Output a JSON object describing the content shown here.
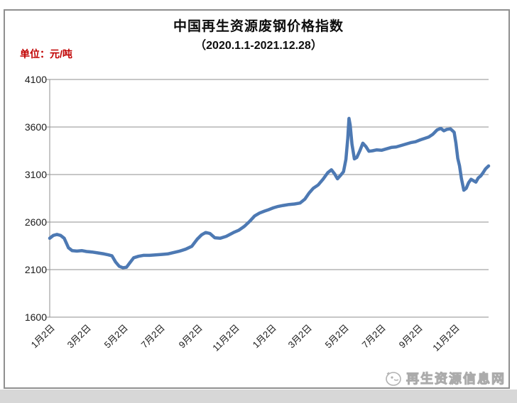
{
  "header": {
    "title": "中国再生资源废钢价格指数",
    "subtitle": "（2020.1.1-2021.12.28）",
    "unit_label": "单位：元/吨"
  },
  "watermark": {
    "text": "再生资源信息网"
  },
  "colors": {
    "line": "#4d79b3",
    "grid": "#8f8f8f",
    "axis": "#8f8f8f",
    "unit_label": "#c00000",
    "title": "#0d0d0d"
  },
  "chart_data": {
    "type": "line",
    "title": "中国再生资源废钢价格指数（2020.1.1-2021.12.28）",
    "ylabel": "元/吨",
    "ylim": [
      1600,
      4100
    ],
    "y_ticks": [
      4100,
      3600,
      3100,
      2600,
      2100,
      1600
    ],
    "x_ticks": [
      {
        "date": "2020-01-02",
        "label": "1月2日"
      },
      {
        "date": "2020-03-02",
        "label": "3月2日"
      },
      {
        "date": "2020-05-02",
        "label": "5月2日"
      },
      {
        "date": "2020-07-02",
        "label": "7月2日"
      },
      {
        "date": "2020-09-02",
        "label": "9月2日"
      },
      {
        "date": "2020-11-02",
        "label": "11月2日"
      },
      {
        "date": "2021-01-02",
        "label": "1月2日"
      },
      {
        "date": "2021-03-02",
        "label": "3月2日"
      },
      {
        "date": "2021-05-02",
        "label": "5月2日"
      },
      {
        "date": "2021-07-02",
        "label": "7月2日"
      },
      {
        "date": "2021-09-02",
        "label": "9月2日"
      },
      {
        "date": "2021-11-02",
        "label": "11月2日"
      }
    ],
    "grid": true,
    "legend": false,
    "series": [
      {
        "name": "废钢价格指数",
        "points": [
          {
            "date": "2020-01-02",
            "value": 2430
          },
          {
            "date": "2020-01-08",
            "value": 2460
          },
          {
            "date": "2020-01-14",
            "value": 2470
          },
          {
            "date": "2020-01-20",
            "value": 2460
          },
          {
            "date": "2020-01-26",
            "value": 2430
          },
          {
            "date": "2020-02-02",
            "value": 2330
          },
          {
            "date": "2020-02-08",
            "value": 2300
          },
          {
            "date": "2020-02-16",
            "value": 2295
          },
          {
            "date": "2020-02-24",
            "value": 2300
          },
          {
            "date": "2020-03-03",
            "value": 2290
          },
          {
            "date": "2020-03-12",
            "value": 2285
          },
          {
            "date": "2020-03-22",
            "value": 2275
          },
          {
            "date": "2020-04-01",
            "value": 2265
          },
          {
            "date": "2020-04-08",
            "value": 2255
          },
          {
            "date": "2020-04-14",
            "value": 2245
          },
          {
            "date": "2020-04-20",
            "value": 2180
          },
          {
            "date": "2020-04-26",
            "value": 2135
          },
          {
            "date": "2020-05-02",
            "value": 2120
          },
          {
            "date": "2020-05-08",
            "value": 2125
          },
          {
            "date": "2020-05-14",
            "value": 2175
          },
          {
            "date": "2020-05-20",
            "value": 2225
          },
          {
            "date": "2020-05-28",
            "value": 2240
          },
          {
            "date": "2020-06-05",
            "value": 2250
          },
          {
            "date": "2020-06-15",
            "value": 2250
          },
          {
            "date": "2020-06-25",
            "value": 2255
          },
          {
            "date": "2020-07-05",
            "value": 2260
          },
          {
            "date": "2020-07-15",
            "value": 2265
          },
          {
            "date": "2020-07-25",
            "value": 2280
          },
          {
            "date": "2020-08-04",
            "value": 2295
          },
          {
            "date": "2020-08-14",
            "value": 2315
          },
          {
            "date": "2020-08-24",
            "value": 2345
          },
          {
            "date": "2020-09-02",
            "value": 2420
          },
          {
            "date": "2020-09-09",
            "value": 2465
          },
          {
            "date": "2020-09-16",
            "value": 2490
          },
          {
            "date": "2020-09-23",
            "value": 2480
          },
          {
            "date": "2020-10-01",
            "value": 2435
          },
          {
            "date": "2020-10-10",
            "value": 2430
          },
          {
            "date": "2020-10-20",
            "value": 2450
          },
          {
            "date": "2020-11-01",
            "value": 2490
          },
          {
            "date": "2020-11-10",
            "value": 2515
          },
          {
            "date": "2020-11-19",
            "value": 2555
          },
          {
            "date": "2020-11-28",
            "value": 2610
          },
          {
            "date": "2020-12-06",
            "value": 2665
          },
          {
            "date": "2020-12-14",
            "value": 2695
          },
          {
            "date": "2020-12-22",
            "value": 2715
          },
          {
            "date": "2020-12-29",
            "value": 2730
          },
          {
            "date": "2021-01-06",
            "value": 2750
          },
          {
            "date": "2021-01-14",
            "value": 2765
          },
          {
            "date": "2021-01-22",
            "value": 2775
          },
          {
            "date": "2021-02-01",
            "value": 2785
          },
          {
            "date": "2021-02-10",
            "value": 2790
          },
          {
            "date": "2021-02-19",
            "value": 2800
          },
          {
            "date": "2021-02-27",
            "value": 2840
          },
          {
            "date": "2021-03-06",
            "value": 2905
          },
          {
            "date": "2021-03-13",
            "value": 2955
          },
          {
            "date": "2021-03-21",
            "value": 2990
          },
          {
            "date": "2021-03-29",
            "value": 3050
          },
          {
            "date": "2021-04-06",
            "value": 3120
          },
          {
            "date": "2021-04-12",
            "value": 3150
          },
          {
            "date": "2021-04-17",
            "value": 3110
          },
          {
            "date": "2021-04-22",
            "value": 3055
          },
          {
            "date": "2021-04-27",
            "value": 3090
          },
          {
            "date": "2021-05-02",
            "value": 3130
          },
          {
            "date": "2021-05-06",
            "value": 3260
          },
          {
            "date": "2021-05-09",
            "value": 3480
          },
          {
            "date": "2021-05-11",
            "value": 3690
          },
          {
            "date": "2021-05-13",
            "value": 3620
          },
          {
            "date": "2021-05-16",
            "value": 3420
          },
          {
            "date": "2021-05-20",
            "value": 3265
          },
          {
            "date": "2021-05-24",
            "value": 3280
          },
          {
            "date": "2021-05-29",
            "value": 3350
          },
          {
            "date": "2021-06-03",
            "value": 3430
          },
          {
            "date": "2021-06-08",
            "value": 3395
          },
          {
            "date": "2021-06-13",
            "value": 3345
          },
          {
            "date": "2021-06-19",
            "value": 3350
          },
          {
            "date": "2021-06-26",
            "value": 3360
          },
          {
            "date": "2021-07-04",
            "value": 3355
          },
          {
            "date": "2021-07-12",
            "value": 3370
          },
          {
            "date": "2021-07-20",
            "value": 3385
          },
          {
            "date": "2021-07-28",
            "value": 3390
          },
          {
            "date": "2021-08-05",
            "value": 3405
          },
          {
            "date": "2021-08-13",
            "value": 3420
          },
          {
            "date": "2021-08-21",
            "value": 3435
          },
          {
            "date": "2021-08-29",
            "value": 3445
          },
          {
            "date": "2021-09-06",
            "value": 3465
          },
          {
            "date": "2021-09-13",
            "value": 3480
          },
          {
            "date": "2021-09-20",
            "value": 3495
          },
          {
            "date": "2021-09-27",
            "value": 3525
          },
          {
            "date": "2021-10-04",
            "value": 3570
          },
          {
            "date": "2021-10-10",
            "value": 3585
          },
          {
            "date": "2021-10-15",
            "value": 3560
          },
          {
            "date": "2021-10-20",
            "value": 3575
          },
          {
            "date": "2021-10-26",
            "value": 3580
          },
          {
            "date": "2021-11-01",
            "value": 3545
          },
          {
            "date": "2021-11-04",
            "value": 3430
          },
          {
            "date": "2021-11-07",
            "value": 3270
          },
          {
            "date": "2021-11-10",
            "value": 3190
          },
          {
            "date": "2021-11-13",
            "value": 3060
          },
          {
            "date": "2021-11-17",
            "value": 2935
          },
          {
            "date": "2021-11-21",
            "value": 2955
          },
          {
            "date": "2021-11-25",
            "value": 3015
          },
          {
            "date": "2021-11-29",
            "value": 3050
          },
          {
            "date": "2021-12-03",
            "value": 3035
          },
          {
            "date": "2021-12-07",
            "value": 3020
          },
          {
            "date": "2021-12-11",
            "value": 3065
          },
          {
            "date": "2021-12-15",
            "value": 3085
          },
          {
            "date": "2021-12-19",
            "value": 3120
          },
          {
            "date": "2021-12-23",
            "value": 3160
          },
          {
            "date": "2021-12-28",
            "value": 3190
          }
        ]
      }
    ]
  }
}
